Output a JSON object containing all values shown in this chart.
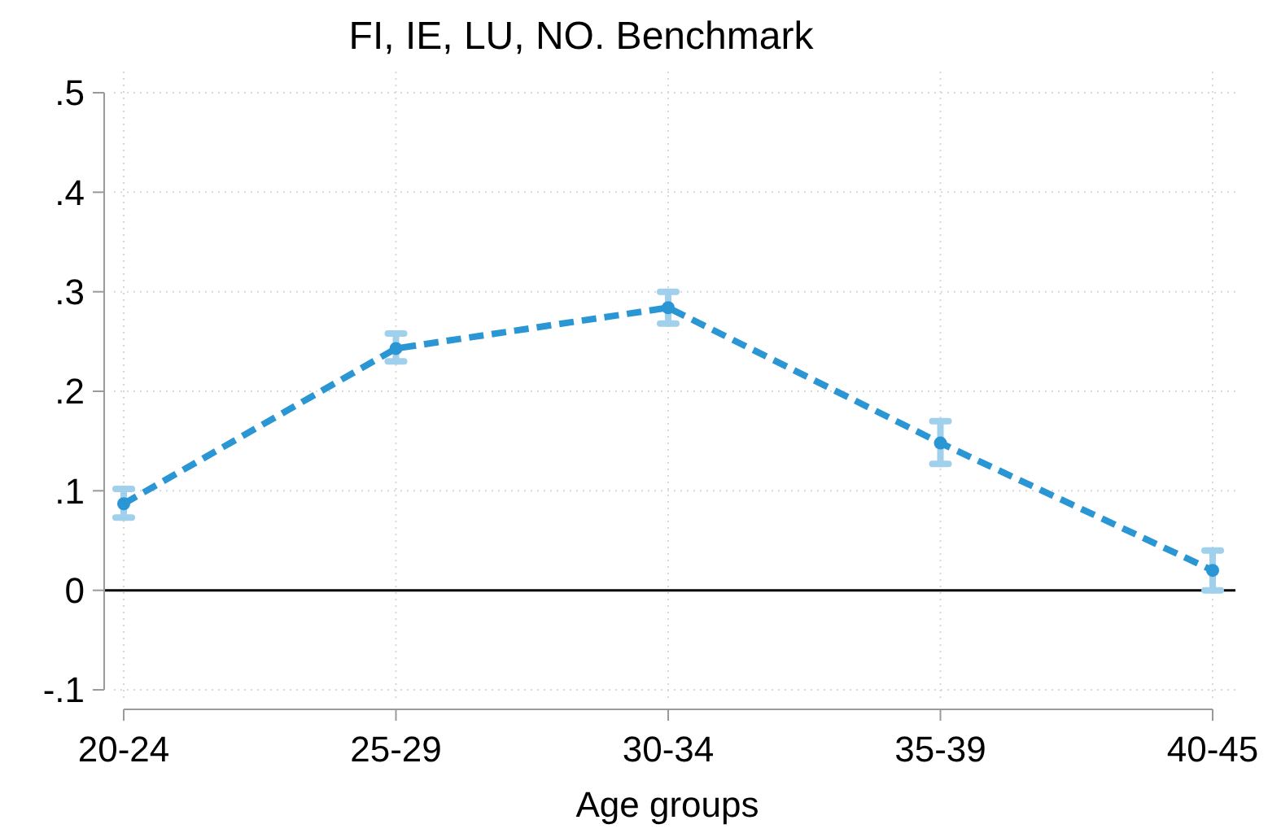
{
  "chart_data": {
    "type": "line",
    "title": "FI, IE, LU, NO. Benchmark",
    "xlabel": "Age groups",
    "categories": [
      "20-24",
      "25-29",
      "30-34",
      "35-39",
      "40-45"
    ],
    "series": [
      {
        "color": "#2b96d4",
        "values": [
          0.087,
          0.243,
          0.284,
          0.148,
          0.02
        ],
        "errors": [
          [
            0.073,
            0.102
          ],
          [
            0.23,
            0.258
          ],
          [
            0.268,
            0.3
          ],
          [
            0.127,
            0.17
          ],
          [
            0.0,
            0.04
          ]
        ]
      }
    ],
    "ylim": [
      -0.1,
      0.5
    ],
    "yticks": [
      {
        "value": -0.1,
        "label": "-.1"
      },
      0,
      {
        "value": 0.1,
        "label": ".1"
      },
      {
        "value": 0.2,
        "label": ".2"
      },
      {
        "value": 0.3,
        "label": ".3"
      },
      {
        "value": 0.4,
        "label": ".4"
      },
      {
        "value": 0.5,
        "label": ".5"
      }
    ],
    "ref_lines": [
      {
        "axis": "y",
        "value": 0,
        "color": "#000000"
      }
    ],
    "grid": true,
    "marker": "circle",
    "line_style": "dashed"
  }
}
